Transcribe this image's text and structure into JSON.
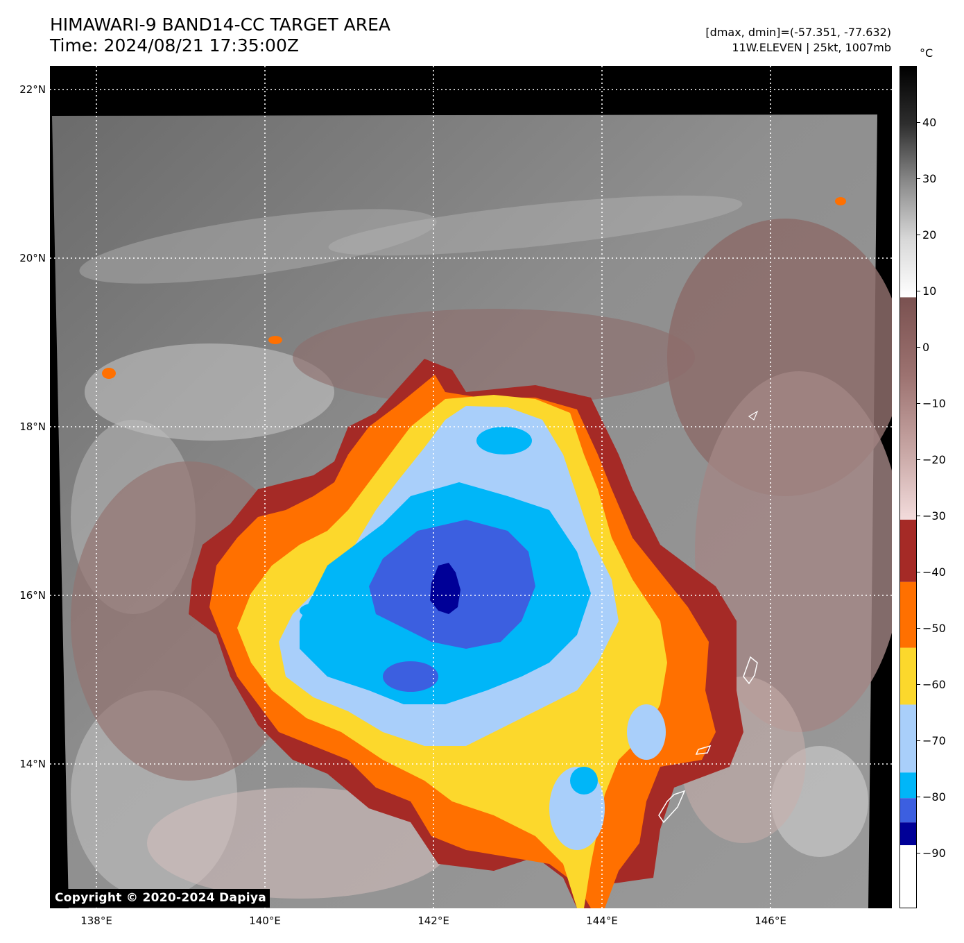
{
  "header": {
    "title_line1": "HIMAWARI-9 BAND14-CC TARGET AREA",
    "title_line2": "Time: 2024/08/21 17:35:00Z",
    "info_line1": "[dmax, dmin]=(-57.351, -77.632)",
    "info_line2": "11W.ELEVEN | 25kt, 1007mb"
  },
  "map": {
    "lat_ticks": [
      "22°N",
      "20°N",
      "18°N",
      "16°N",
      "14°N"
    ],
    "lon_ticks": [
      "138°E",
      "140°E",
      "142°E",
      "144°E",
      "146°E"
    ],
    "copyright": "Copyright © 2020-2024 Dapiya",
    "gridlines": "dotted white"
  },
  "colorbar": {
    "unit": "°C",
    "labels": [
      "40",
      "30",
      "20",
      "10",
      "0",
      "−10",
      "−20",
      "−30",
      "−40",
      "−50",
      "−60",
      "−70",
      "−80",
      "−90"
    ],
    "bands": [
      {
        "from": 50,
        "to": 10,
        "colors": [
          "#000000",
          "#3a3a3a",
          "#8a8a8a",
          "#d8d8d8",
          "#ffffff"
        ]
      },
      {
        "from": 10,
        "to": -30,
        "colors": [
          "#7a5150",
          "#9c7270",
          "#c9a8a6",
          "#f3dcdc"
        ]
      },
      {
        "from": -30,
        "to": -42,
        "color": "#a52a26"
      },
      {
        "from": -42,
        "to": -54,
        "color": "#ff7000"
      },
      {
        "from": -54,
        "to": -64,
        "color": "#fcd82c"
      },
      {
        "from": -64,
        "to": -72,
        "color": "#a9cffa"
      },
      {
        "from": -72,
        "to": -77,
        "color": "#00b6f8"
      },
      {
        "from": -77,
        "to": -82,
        "color": "#3c5fe0"
      },
      {
        "from": -82,
        "to": -86,
        "color": "#000097"
      },
      {
        "from": -86,
        "to": -100,
        "color": "#ffffff"
      }
    ]
  }
}
